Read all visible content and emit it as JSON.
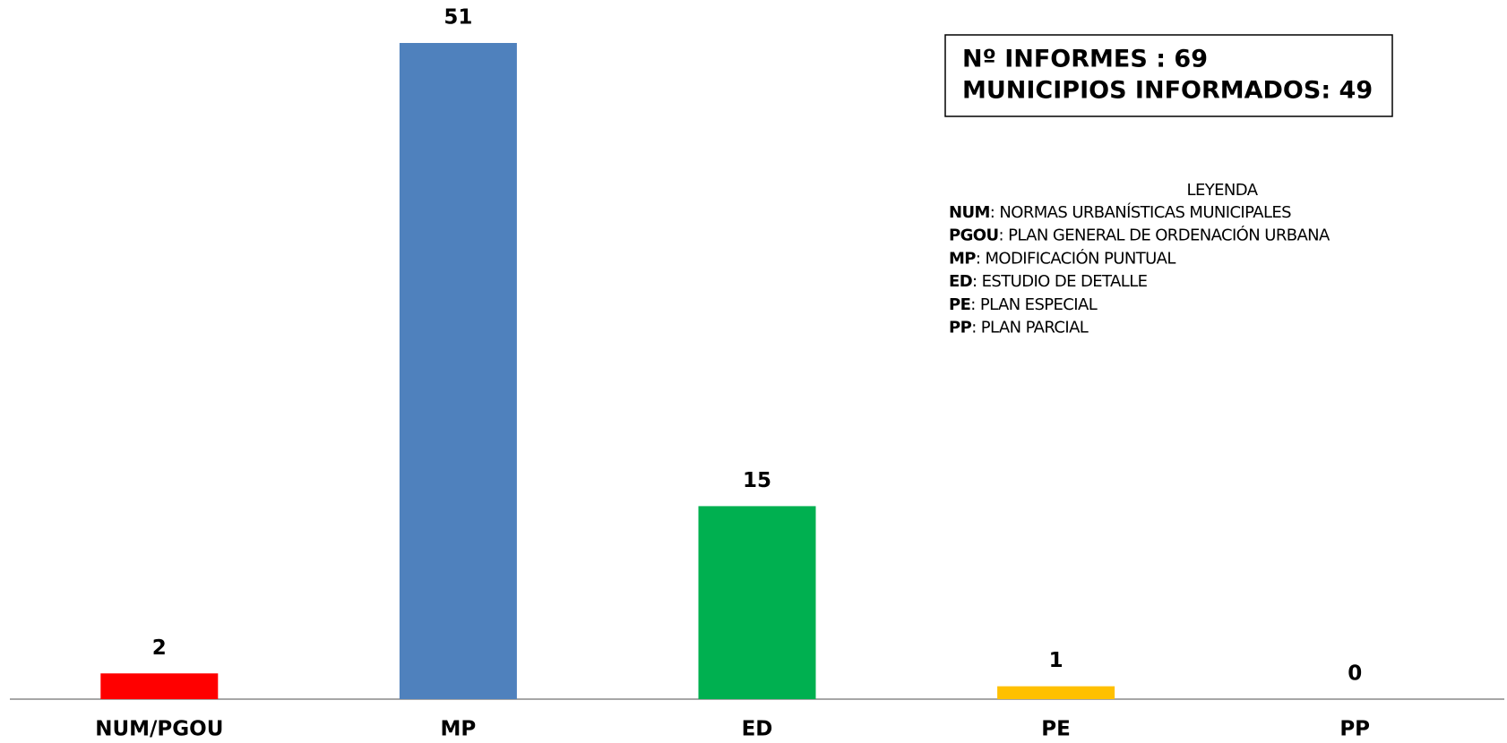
{
  "chart_data": {
    "type": "bar",
    "categories": [
      "NUM/PGOU",
      "MP",
      "ED",
      "PE",
      "PP"
    ],
    "values": [
      2,
      51,
      15,
      1,
      0
    ],
    "colors": [
      "#ff0000",
      "#4f81bd",
      "#00b050",
      "#ffc000",
      "#7030a0"
    ],
    "annotations": [
      "Nº INFORMES : 69",
      "MUNICIPIOS INFORMADOS: 49"
    ],
    "legend_title": "LEYENDA",
    "legend_items": [
      {
        "abbr": "NUM",
        "text": ": NORMAS URBANÍSTICAS MUNICIPALES"
      },
      {
        "abbr": "PGOU",
        "text": ": PLAN GENERAL DE ORDENACIÓN URBANA"
      },
      {
        "abbr": "MP",
        "text": ": MODIFICACIÓN PUNTUAL"
      },
      {
        "abbr": "ED",
        "text": ": ESTUDIO DE DETALLE"
      },
      {
        "abbr": "PE",
        "text": ": PLAN ESPECIAL"
      },
      {
        "abbr": "PP",
        "text": ": PLAN PARCIAL"
      }
    ]
  }
}
